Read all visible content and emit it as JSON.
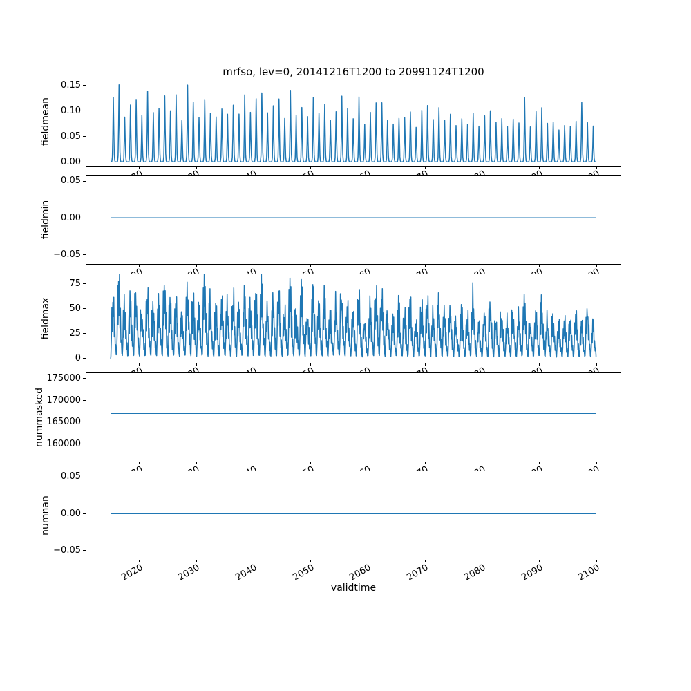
{
  "title": "mrfso, lev=0, 20141216T1200 to 20991124T1200",
  "xlabel": "validtime",
  "line_color": "#1f77b4",
  "xlim": [
    2010.7,
    2104.2
  ],
  "x_ticks": [
    2020,
    2030,
    2040,
    2050,
    2060,
    2070,
    2080,
    2090,
    2100
  ],
  "x_tick_labels": [
    "2020",
    "2030",
    "2040",
    "2050",
    "2060",
    "2070",
    "2080",
    "2090",
    "2100"
  ],
  "chart_data": [
    {
      "type": "line",
      "ylabel": "fieldmean",
      "ylim": [
        -0.00785,
        0.1649
      ],
      "yticks": [
        0.0,
        0.05,
        0.1,
        0.15
      ],
      "ytick_labels": [
        "0.00",
        "0.05",
        "0.10",
        "0.15"
      ],
      "series": {
        "kind": "annual_pulse",
        "x_start": 2014.96,
        "x_end": 2099.92,
        "year_start": 2015,
        "monthly_shape": [
          0,
          0,
          0.01,
          0.08,
          0.45,
          1.0,
          0.5,
          0.12,
          0.02,
          0,
          0,
          0
        ],
        "jitter": 0.08,
        "annual_peaks": [
          0.12,
          0.157,
          0.092,
          0.105,
          0.122,
          0.088,
          0.131,
          0.095,
          0.112,
          0.126,
          0.098,
          0.13,
          0.086,
          0.153,
          0.118,
          0.09,
          0.116,
          0.102,
          0.084,
          0.108,
          0.092,
          0.113,
          0.096,
          0.121,
          0.101,
          0.117,
          0.138,
          0.089,
          0.104,
          0.118,
          0.086,
          0.135,
          0.092,
          0.108,
          0.083,
          0.121,
          0.094,
          0.11,
          0.087,
          0.099,
          0.12,
          0.104,
          0.079,
          0.118,
          0.069,
          0.096,
          0.119,
          0.122,
          0.081,
          0.074,
          0.091,
          0.086,
          0.103,
          0.071,
          0.097,
          0.106,
          0.082,
          0.101,
          0.076,
          0.087,
          0.072,
          0.082,
          0.077,
          0.091,
          0.067,
          0.086,
          0.094,
          0.072,
          0.079,
          0.068,
          0.088,
          0.073,
          0.13,
          0.066,
          0.092,
          0.108,
          0.071,
          0.083,
          0.065,
          0.074,
          0.068,
          0.079,
          0.109,
          0.071,
          0.066
        ]
      }
    },
    {
      "type": "line",
      "ylabel": "fieldmin",
      "ylim": [
        -0.0625,
        0.0575
      ],
      "yticks": [
        -0.05,
        0.0,
        0.05
      ],
      "ytick_labels": [
        "−0.05",
        "0.00",
        "0.05"
      ],
      "series": {
        "kind": "constant",
        "value": 0.0,
        "x_start": 2014.96,
        "x_end": 2099.92
      }
    },
    {
      "type": "line",
      "ylabel": "fieldmax",
      "ylim": [
        -4.2,
        84.4
      ],
      "yticks": [
        0,
        25,
        50,
        75
      ],
      "ytick_labels": [
        "0",
        "25",
        "50",
        "75"
      ],
      "series": {
        "kind": "annual_pulse",
        "x_start": 2014.96,
        "x_end": 2099.92,
        "year_start": 2015,
        "monthly_shape": [
          0.05,
          0.3,
          0.8,
          0.45,
          1.0,
          0.6,
          0.9,
          0.35,
          0.55,
          0.18,
          0.28,
          0.06
        ],
        "jitter": 0.2,
        "annual_peaks": [
          62,
          80,
          55,
          61,
          70,
          52,
          66,
          58,
          63,
          72,
          56,
          68,
          50,
          76,
          65,
          53,
          78,
          60,
          49,
          62,
          54,
          66,
          56,
          70,
          59,
          67,
          74,
          52,
          61,
          68,
          50,
          73,
          54,
          73,
          48,
          70,
          55,
          64,
          51,
          58,
          69,
          60,
          46,
          67,
          41,
          56,
          68,
          73,
          48,
          44,
          53,
          50,
          60,
          42,
          57,
          62,
          48,
          59,
          45,
          51,
          42,
          48,
          45,
          65,
          39,
          50,
          55,
          42,
          49,
          41,
          51,
          44,
          61,
          38,
          54,
          62,
          41,
          48,
          38,
          43,
          40,
          46,
          37,
          55,
          39
        ]
      }
    },
    {
      "type": "line",
      "ylabel": "nummasked",
      "ylim": [
        156000,
        176200
      ],
      "yticks": [
        160000,
        165000,
        170000,
        175000
      ],
      "ytick_labels": [
        "160000",
        "165000",
        "170000",
        "175000"
      ],
      "series": {
        "kind": "constant",
        "value": 167000,
        "x_start": 2014.96,
        "x_end": 2099.92
      }
    },
    {
      "type": "line",
      "ylabel": "numnan",
      "ylim": [
        -0.0625,
        0.0575
      ],
      "yticks": [
        -0.05,
        0.0,
        0.05
      ],
      "ytick_labels": [
        "−0.05",
        "0.00",
        "0.05"
      ],
      "series": {
        "kind": "constant",
        "value": 0.0,
        "x_start": 2014.96,
        "x_end": 2099.92
      }
    }
  ]
}
